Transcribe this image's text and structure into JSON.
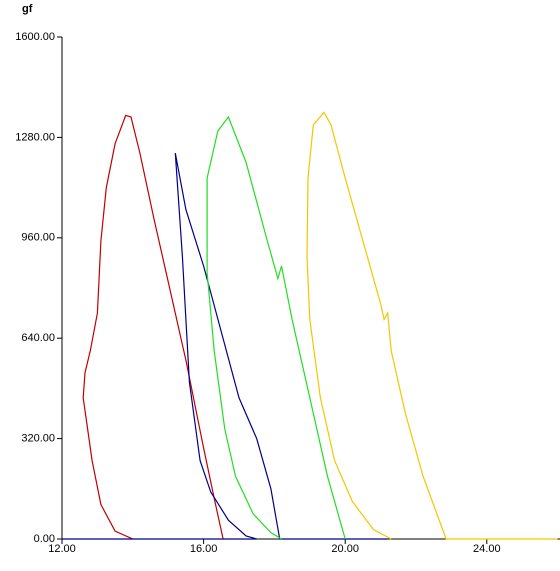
{
  "chart_data": {
    "type": "line",
    "y_label": "gf",
    "xlim": [
      12,
      26
    ],
    "ylim": [
      0,
      1600
    ],
    "xticks": [
      {
        "value": 12,
        "label": "12.00"
      },
      {
        "value": 16,
        "label": "16.00"
      },
      {
        "value": 20,
        "label": "20.00"
      },
      {
        "value": 24,
        "label": "24.00"
      }
    ],
    "yticks": [
      {
        "value": 0,
        "label": "0.00"
      },
      {
        "value": 320,
        "label": "320.00"
      },
      {
        "value": 640,
        "label": "640.00"
      },
      {
        "value": 960,
        "label": "960.00"
      },
      {
        "value": 1280,
        "label": "1280.00"
      },
      {
        "value": 1600,
        "label": "1600.00"
      }
    ],
    "series": [
      {
        "color": "#c00000",
        "x": [
          14.0,
          13.5,
          13.1,
          12.85,
          12.6,
          12.65,
          12.8,
          13.0,
          13.1,
          13.25,
          13.5,
          13.8,
          13.95,
          14.2,
          14.6,
          15.0,
          15.5,
          16.0,
          16.3,
          16.55
        ],
        "values": [
          0,
          25,
          110,
          250,
          450,
          530,
          600,
          720,
          950,
          1120,
          1260,
          1350,
          1345,
          1230,
          1020,
          820,
          570,
          290,
          130,
          0
        ]
      },
      {
        "color": "#00008b",
        "x": [
          12.0,
          17.5,
          17.2,
          16.7,
          16.2,
          15.9,
          15.6,
          15.4,
          15.2,
          15.5,
          16.0,
          16.5,
          17.0,
          17.5,
          17.9,
          18.15,
          21.2
        ],
        "values": [
          0,
          0,
          10,
          60,
          150,
          250,
          500,
          900,
          1230,
          1050,
          870,
          660,
          450,
          320,
          160,
          0,
          0
        ]
      },
      {
        "color": "#22dd22",
        "x": [
          18.2,
          17.9,
          17.4,
          16.9,
          16.6,
          16.3,
          16.1,
          16.1,
          16.4,
          16.7,
          17.2,
          17.8,
          18.1,
          18.2,
          18.5,
          19.0,
          19.5,
          20.0
        ],
        "values": [
          0,
          20,
          80,
          200,
          350,
          600,
          850,
          1150,
          1300,
          1345,
          1200,
          950,
          830,
          870,
          700,
          450,
          200,
          0
        ]
      },
      {
        "color": "#f0c800",
        "x": [
          21.3,
          20.8,
          20.2,
          19.7,
          19.3,
          19.0,
          18.92,
          18.95,
          19.1,
          19.4,
          19.6,
          20.0,
          20.5,
          21.0,
          21.1,
          21.2,
          21.3,
          21.7,
          22.2,
          22.85,
          26.0
        ],
        "values": [
          0,
          30,
          120,
          250,
          450,
          700,
          900,
          1150,
          1320,
          1360,
          1320,
          1150,
          950,
          750,
          700,
          720,
          600,
          400,
          200,
          0,
          0
        ]
      }
    ]
  }
}
